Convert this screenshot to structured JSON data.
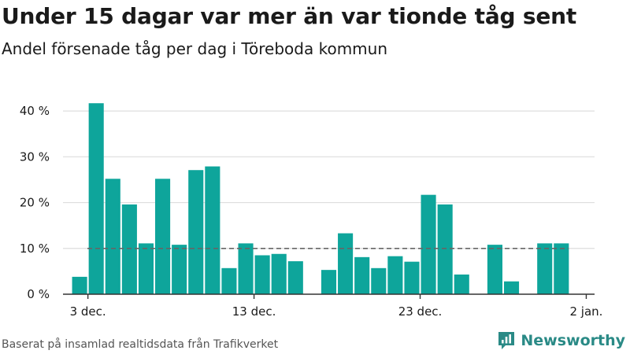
{
  "title": "Under 15 dagar var mer än var tionde tåg sent",
  "subtitle": "Andel försenade tåg per dag i Töreboda kommun",
  "source": "Baserat på insamlad realtidsdata från Trafikverket",
  "brand": {
    "name": "Newsworthy",
    "icon": "newsworthy-logo-icon"
  },
  "colors": {
    "bar": "#0ea59b",
    "grid": "#dddddd",
    "reference": "#666666",
    "axis": "#333333"
  },
  "chart_data": {
    "type": "bar",
    "title": "Under 15 dagar var mer än var tionde tåg sent",
    "subtitle": "Andel försenade tåg per dag i Töreboda kommun",
    "xlabel": "",
    "ylabel": "",
    "unit": "%",
    "ylim": [
      0,
      45
    ],
    "yticks": [
      0,
      10,
      20,
      30,
      40
    ],
    "ytick_labels": [
      "0 %",
      "10 %",
      "20 %",
      "30 %",
      "40 %"
    ],
    "xlim": [
      "2023-12-01T12:00",
      "2024-01-02T12:00"
    ],
    "xticks": [
      "2023-12-03",
      "2023-12-13",
      "2023-12-23",
      "2024-01-02"
    ],
    "xtick_labels": [
      "3 dec.",
      "13 dec.",
      "23 dec.",
      "2 jan."
    ],
    "grid": true,
    "reference_line": 10,
    "x": [
      "2023-12-02",
      "2023-12-03",
      "2023-12-04",
      "2023-12-05",
      "2023-12-06",
      "2023-12-07",
      "2023-12-08",
      "2023-12-09",
      "2023-12-10",
      "2023-12-11",
      "2023-12-12",
      "2023-12-13",
      "2023-12-14",
      "2023-12-15",
      "2023-12-16",
      "2023-12-17",
      "2023-12-18",
      "2023-12-19",
      "2023-12-20",
      "2023-12-21",
      "2023-12-22",
      "2023-12-23",
      "2023-12-24",
      "2023-12-25",
      "2023-12-26",
      "2023-12-27",
      "2023-12-28",
      "2023-12-29",
      "2023-12-30",
      "2023-12-31"
    ],
    "values": [
      3.8,
      41.7,
      25.2,
      19.6,
      11.1,
      25.2,
      10.8,
      27.1,
      27.9,
      5.7,
      11.1,
      8.5,
      8.8,
      7.2,
      null,
      5.3,
      13.3,
      8.1,
      5.7,
      8.3,
      7.1,
      21.7,
      19.6,
      4.3,
      null,
      10.8,
      2.8,
      null,
      11.1,
      11.1
    ]
  }
}
